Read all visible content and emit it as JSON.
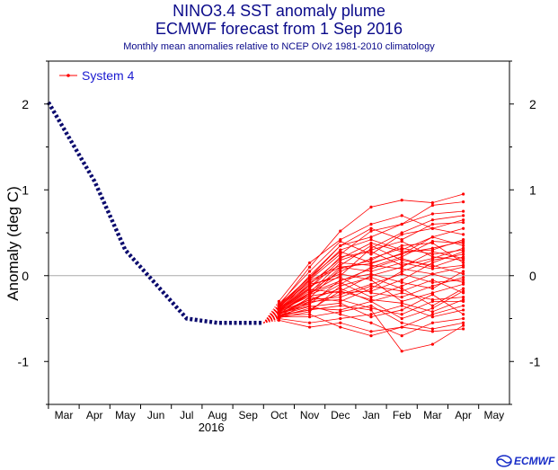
{
  "chart_data": {
    "type": "line",
    "title": "NINO3.4 SST anomaly plume",
    "title2": "ECMWF forecast from 1 Sep 2016",
    "subtitle": "Monthly mean anomalies relative to NCEP OIv2 1981-2010 climatology",
    "ylabel": "Anomaly (deg C)",
    "year_label": "2016",
    "ylim": [
      -1.5,
      2.5
    ],
    "yticks": [
      -1,
      0,
      1,
      2
    ],
    "x_labels": [
      "Mar",
      "Apr",
      "May",
      "Jun",
      "Jul",
      "Aug",
      "Sep",
      "Oct",
      "Nov",
      "Dec",
      "Jan",
      "Feb",
      "Mar",
      "Apr",
      "May"
    ],
    "legend": {
      "label": "System 4",
      "position": "top-left"
    },
    "observed": {
      "x": [
        -0.5,
        1,
        2,
        3,
        4,
        5,
        6.5
      ],
      "y": [
        2.02,
        1.1,
        0.3,
        -0.1,
        -0.5,
        -0.55,
        -0.55
      ],
      "color": "#0b0b6e"
    },
    "forecast_color": "#ff0000",
    "forecast_x": [
      7,
      8,
      9,
      10,
      11,
      12,
      13
    ],
    "ensemble": [
      [
        -0.4,
        -0.05,
        0.25,
        0.52,
        0.6,
        0.72,
        0.75
      ],
      [
        -0.35,
        0.1,
        0.52,
        0.8,
        0.88,
        0.85,
        0.95
      ],
      [
        -0.45,
        -0.2,
        0.0,
        0.32,
        0.5,
        0.65,
        0.7
      ],
      [
        -0.3,
        0.15,
        0.42,
        0.6,
        0.7,
        0.55,
        0.65
      ],
      [
        -0.42,
        -0.1,
        0.2,
        0.38,
        0.28,
        0.3,
        0.42
      ],
      [
        -0.5,
        -0.3,
        -0.1,
        0.1,
        0.22,
        0.4,
        0.38
      ],
      [
        -0.38,
        0.0,
        0.35,
        0.45,
        0.6,
        0.82,
        0.86
      ],
      [
        -0.48,
        -0.25,
        -0.3,
        -0.15,
        0.05,
        0.18,
        0.25
      ],
      [
        -0.4,
        -0.18,
        0.05,
        0.2,
        0.32,
        0.25,
        0.3
      ],
      [
        -0.44,
        -0.35,
        -0.45,
        -0.55,
        -0.7,
        -0.55,
        -0.5
      ],
      [
        -0.52,
        -0.6,
        -0.55,
        -0.65,
        -0.6,
        -0.65,
        -0.62
      ],
      [
        -0.46,
        -0.4,
        -0.35,
        -0.4,
        -0.88,
        -0.8,
        -0.58
      ],
      [
        -0.5,
        -0.55,
        -0.5,
        -0.45,
        -0.35,
        -0.48,
        -0.4
      ],
      [
        -0.42,
        -0.28,
        -0.15,
        -0.3,
        -0.5,
        -0.38,
        -0.18
      ],
      [
        -0.36,
        -0.08,
        0.1,
        0.05,
        0.15,
        0.08,
        0.12
      ],
      [
        -0.4,
        -0.15,
        0.18,
        0.3,
        0.4,
        0.22,
        0.18
      ],
      [
        -0.45,
        -0.32,
        -0.22,
        -0.1,
        0.02,
        -0.08,
        -0.05
      ],
      [
        -0.48,
        -0.38,
        -0.4,
        -0.3,
        -0.2,
        -0.28,
        -0.25
      ],
      [
        -0.34,
        -0.02,
        0.28,
        0.15,
        0.25,
        0.45,
        0.35
      ],
      [
        -0.43,
        -0.22,
        -0.08,
        -0.25,
        -0.12,
        0.02,
        0.1
      ],
      [
        -0.39,
        -0.12,
        0.02,
        -0.05,
        -0.3,
        -0.2,
        -0.1
      ],
      [
        -0.47,
        -0.45,
        -0.6,
        -0.7,
        -0.6,
        -0.45,
        -0.35
      ],
      [
        -0.41,
        -0.24,
        -0.18,
        0.0,
        0.1,
        0.28,
        0.2
      ],
      [
        -0.37,
        -0.06,
        0.12,
        0.35,
        0.18,
        0.12,
        0.02
      ],
      [
        -0.44,
        -0.3,
        -0.28,
        -0.38,
        -0.45,
        -0.3,
        -0.3
      ],
      [
        -0.33,
        0.05,
        0.4,
        0.25,
        0.48,
        0.55,
        0.48
      ],
      [
        -0.49,
        -0.42,
        -0.12,
        -0.02,
        -0.15,
        -0.35,
        -0.15
      ],
      [
        -0.41,
        -0.16,
        -0.2,
        -0.18,
        -0.05,
        0.15,
        0.28
      ],
      [
        -0.45,
        -0.26,
        0.08,
        0.18,
        0.35,
        0.38,
        0.15
      ],
      [
        -0.38,
        -0.1,
        -0.02,
        -0.2,
        -0.25,
        -0.12,
        -0.02
      ],
      [
        -0.46,
        -0.36,
        -0.32,
        -0.48,
        -0.4,
        -0.22,
        -0.45
      ],
      [
        -0.4,
        -0.2,
        0.15,
        0.12,
        0.08,
        0.02,
        -0.08
      ],
      [
        -0.43,
        -0.33,
        -0.05,
        0.02,
        -0.08,
        -0.15,
        0.05
      ],
      [
        -0.36,
        -0.04,
        0.3,
        0.42,
        0.3,
        0.45,
        0.55
      ],
      [
        -0.48,
        -0.48,
        -0.42,
        -0.35,
        -0.55,
        -0.62,
        -0.55
      ],
      [
        -0.42,
        -0.2,
        -0.06,
        0.08,
        0.2,
        0.1,
        0.22
      ],
      [
        -0.39,
        -0.14,
        0.22,
        0.28,
        0.12,
        0.2,
        0.32
      ],
      [
        -0.45,
        -0.28,
        -0.25,
        -0.12,
        -0.18,
        -0.05,
        -0.2
      ],
      [
        -0.41,
        -0.22,
        0.1,
        0.14,
        0.26,
        0.32,
        0.4
      ],
      [
        -0.47,
        -0.4,
        -0.18,
        -0.28,
        -0.32,
        -0.42,
        -0.28
      ],
      [
        -0.35,
        -0.02,
        0.35,
        0.55,
        0.42,
        0.6,
        0.62
      ]
    ]
  },
  "logo": {
    "text": "ECMWF"
  }
}
